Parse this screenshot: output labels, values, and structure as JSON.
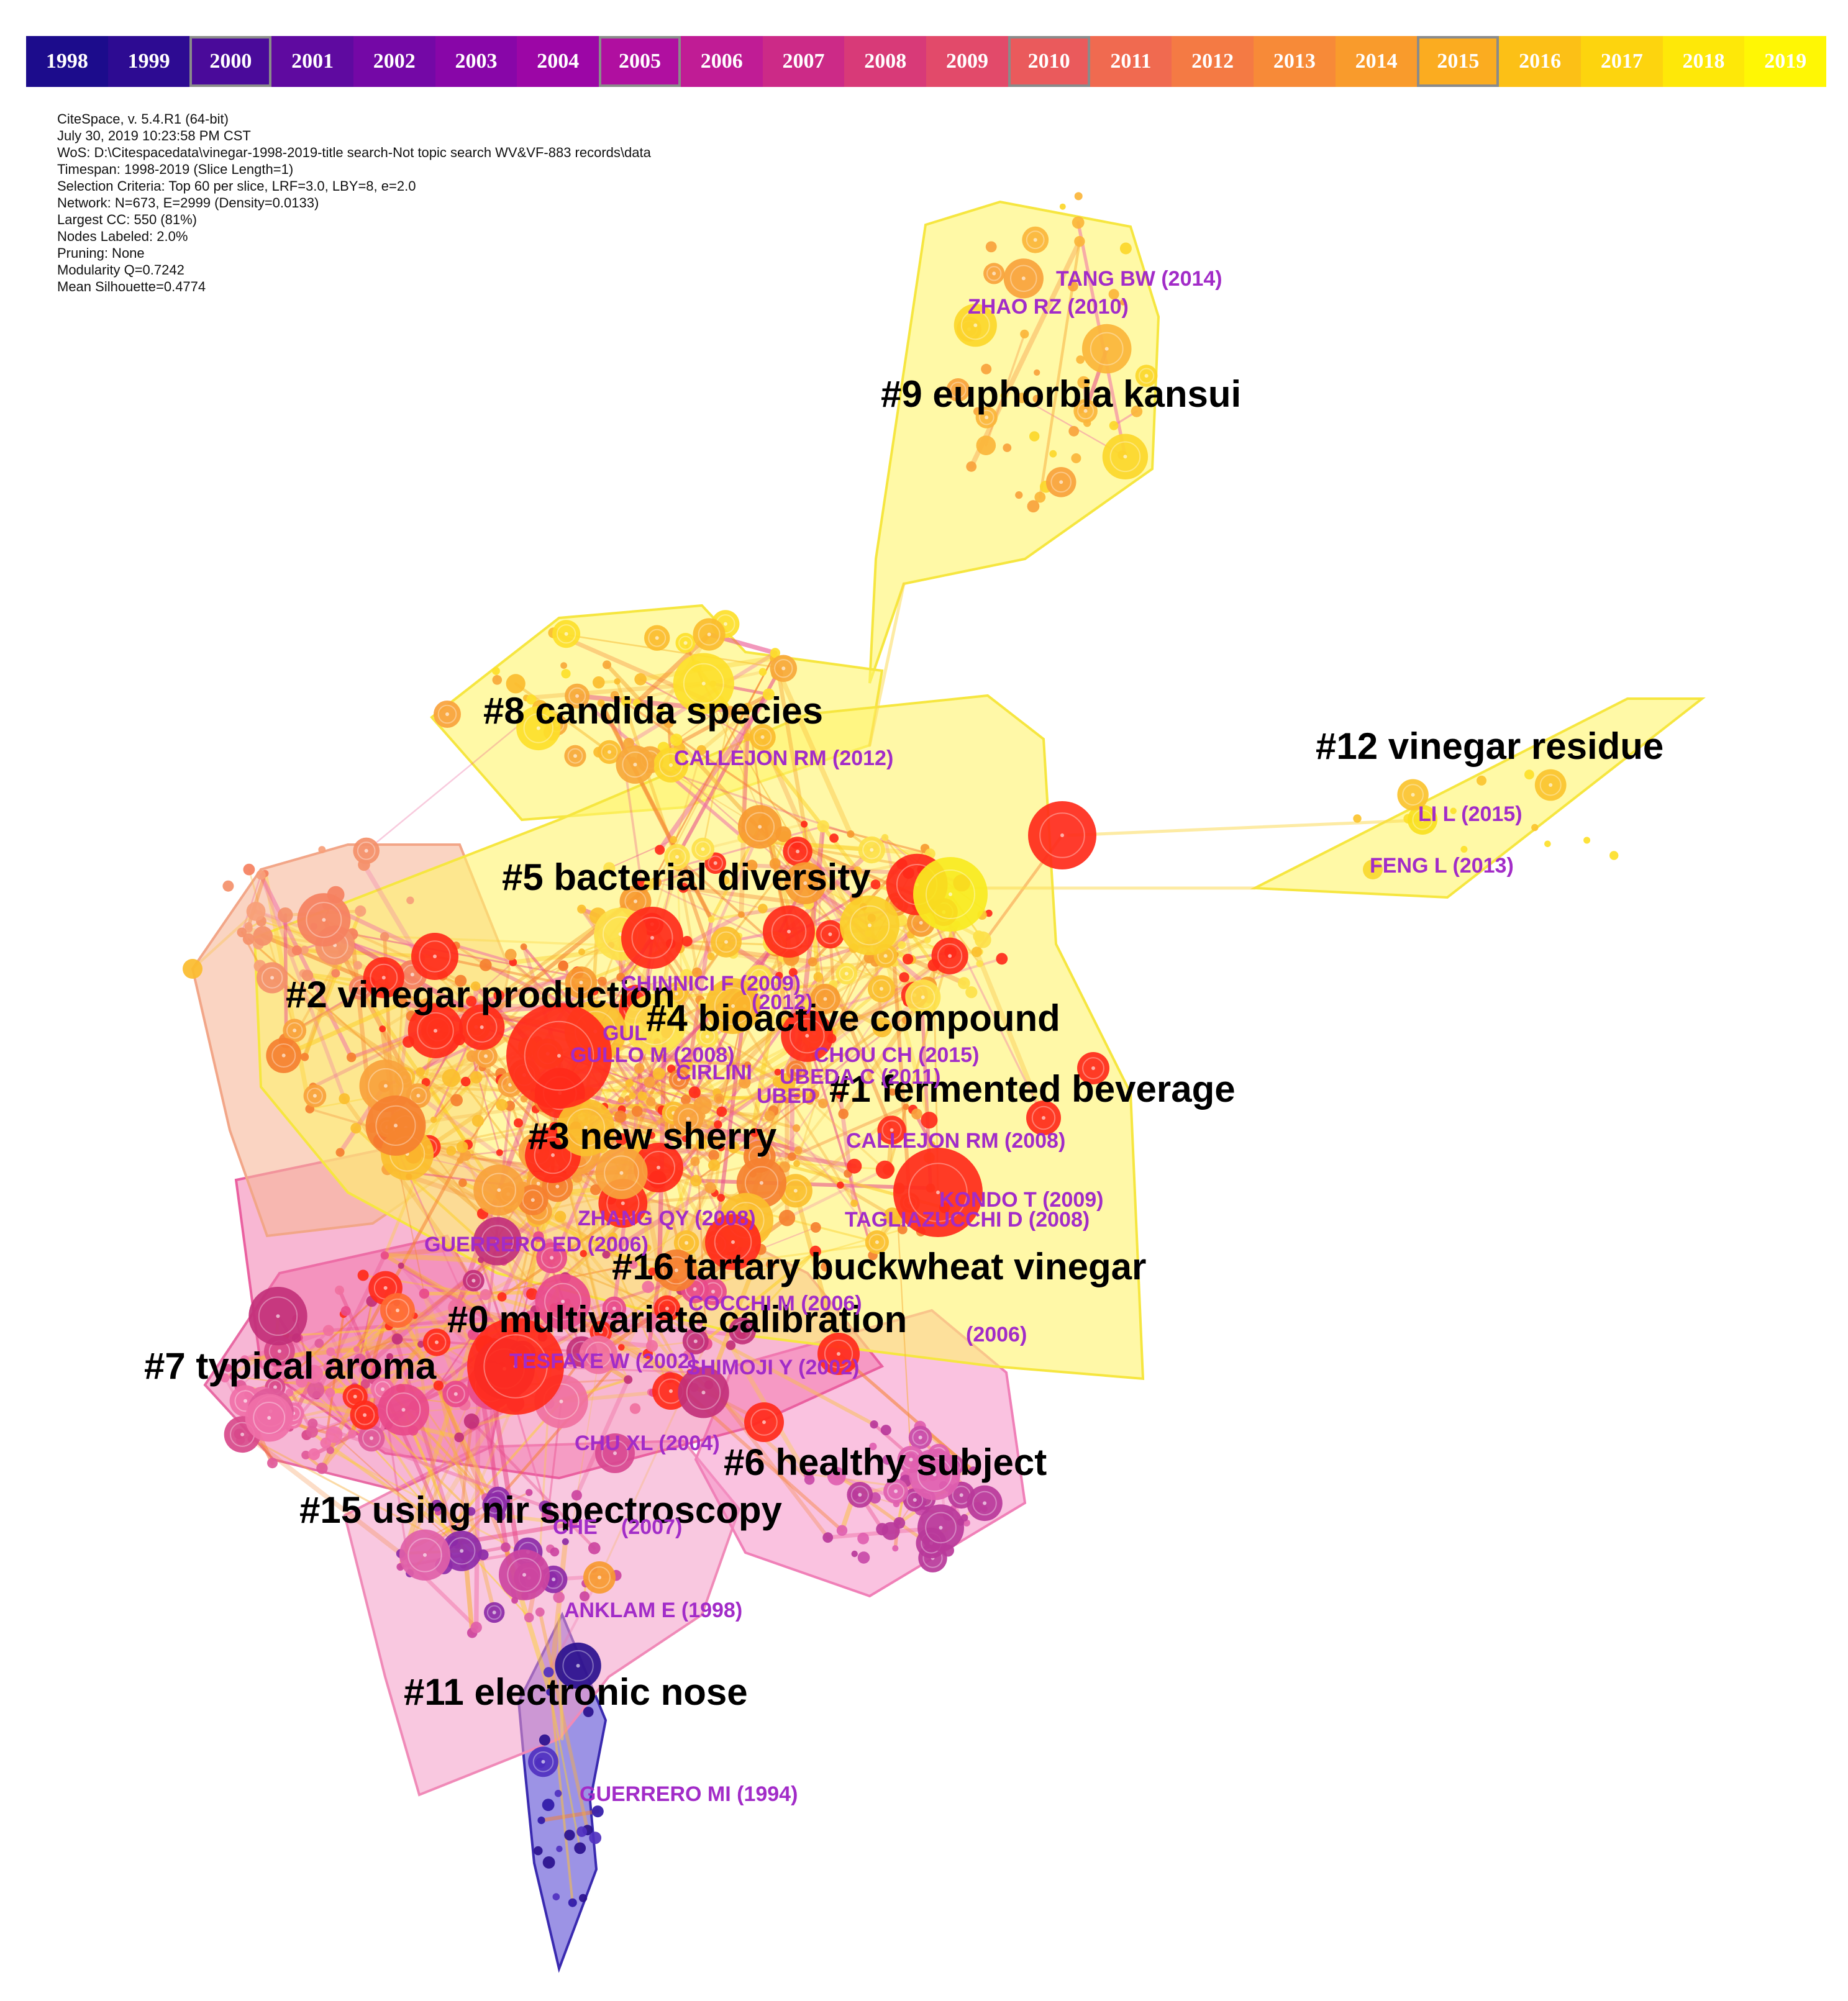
{
  "timeline": {
    "years": [
      "1998",
      "1999",
      "2000",
      "2001",
      "2002",
      "2003",
      "2004",
      "2005",
      "2006",
      "2007",
      "2008",
      "2009",
      "2010",
      "2011",
      "2012",
      "2013",
      "2014",
      "2015",
      "2016",
      "2017",
      "2018",
      "2019"
    ],
    "colors": [
      "#1c0c8c",
      "#2d0b92",
      "#4a0a9a",
      "#5f0aa0",
      "#7408a6",
      "#8806a8",
      "#9c06a6",
      "#b00fa0",
      "#c01c95",
      "#cc2a87",
      "#d83a78",
      "#e24a6a",
      "#ea5a5c",
      "#f06a50",
      "#f47a44",
      "#f78a38",
      "#f99b2c",
      "#fbac20",
      "#fcc016",
      "#fdd40e",
      "#fee808",
      "#fff704"
    ],
    "highlighted": [
      "2000",
      "2005",
      "2010",
      "2015"
    ]
  },
  "info": {
    "lines": [
      "CiteSpace, v. 5.4.R1 (64-bit)",
      "July 30, 2019 10:23:58 PM CST",
      "WoS: D:\\Citespacedata\\vinegar-1998-2019-title search-Not topic search WV&VF-883 records\\data",
      "Timespan: 1998-2019 (Slice Length=1)",
      "Selection Criteria: Top 60 per slice, LRF=3.0, LBY=8, e=2.0",
      "Network: N=673, E=2999 (Density=0.0133)",
      "Largest CC: 550 (81%)",
      "Nodes Labeled: 2.0%",
      "Pruning: None",
      "Modularity Q=0.7242",
      "Mean Silhouette=0.4774"
    ]
  },
  "clusters": [
    {
      "id": "c9",
      "label": "#9 euphorbia kansui"
    },
    {
      "id": "c8",
      "label": "#8 candida species"
    },
    {
      "id": "c12",
      "label": "#12 vinegar residue"
    },
    {
      "id": "c5",
      "label": "#5 bacterial diversity"
    },
    {
      "id": "c2",
      "label": "#2 vinegar production"
    },
    {
      "id": "c4",
      "label": "#4 bioactive compound"
    },
    {
      "id": "c1",
      "label": "#1 fermented beverage"
    },
    {
      "id": "c3",
      "label": "#3 new sherry"
    },
    {
      "id": "c16",
      "label": "#16 tartary buckwheat vinegar"
    },
    {
      "id": "c0",
      "label": "#0 multivariate calibration"
    },
    {
      "id": "c7",
      "label": "#7 typical aroma"
    },
    {
      "id": "c6",
      "label": "#6 healthy subject"
    },
    {
      "id": "c15",
      "label": "#15 using nir spectroscopy"
    },
    {
      "id": "c11",
      "label": "#11 electronic nose"
    }
  ],
  "references": [
    "TANG BW (2014)",
    "ZHAO RZ (2010)",
    "CALLEJON RM (2012)",
    "LI L (2015)",
    "FENG L (2013)",
    "CHINNICI F (2009)",
    "(2012)",
    "GULLO M (2008)",
    "GUL",
    "CHOU CH (2015)",
    "CIRLINI",
    "UBEDA C (2011)",
    "UBED",
    "CALLEJON RM (2008)",
    "KONDO T (2009)",
    "TAGLIAZUCCHI D (2008)",
    "ZHANG QY (2008)",
    "GUERRERO ED (2006)",
    "COCCHI M (2006)",
    "(2006)",
    "TESFAYE W (2002)",
    "SHIMOJI Y (2002)",
    "CHU XL (2004)",
    "CHE",
    "(2007)",
    "ANKLAM E (1998)",
    "GUERRERO MI (1994)"
  ]
}
